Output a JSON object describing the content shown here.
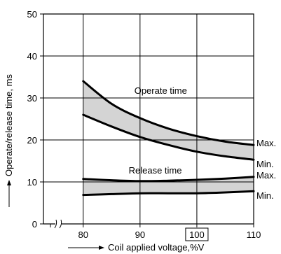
{
  "chart_data": {
    "type": "area",
    "xlabel": "Coil applied voltage,%V",
    "ylabel": "Operate/release time, ms",
    "xlim": [
      73,
      110
    ],
    "ylim": [
      0,
      50
    ],
    "x_ticks": [
      "80",
      "90",
      "100",
      "110"
    ],
    "x_tick_values": [
      80,
      90,
      100,
      110
    ],
    "boxed_tick": "100",
    "y_ticks": [
      "0",
      "10",
      "20",
      "30",
      "40",
      "50"
    ],
    "y_tick_values": [
      0,
      10,
      20,
      30,
      40,
      50
    ],
    "axis_break": true,
    "grid": true,
    "bands": [
      {
        "label": "Operate time",
        "label_at": [
          89,
          31
        ],
        "band_color": "#d4d4d4",
        "max": {
          "label": "Max.",
          "x": [
            80,
            85,
            90,
            95,
            100,
            105,
            110
          ],
          "y": [
            34,
            28.6,
            25.2,
            22.7,
            20.9,
            19.6,
            18.8
          ]
        },
        "min": {
          "label": "Min.",
          "x": [
            80,
            85,
            90,
            95,
            100,
            105,
            110
          ],
          "y": [
            26,
            23.2,
            20.7,
            18.8,
            17.2,
            16.1,
            15.3
          ]
        }
      },
      {
        "label": "Release time",
        "label_at": [
          88,
          12
        ],
        "band_color": "#d4d4d4",
        "max": {
          "label": "Max.",
          "x": [
            80,
            85,
            90,
            95,
            100,
            105,
            110
          ],
          "y": [
            10.7,
            10.4,
            10.2,
            10.3,
            10.5,
            10.8,
            11.2
          ]
        },
        "min": {
          "label": "Min.",
          "x": [
            80,
            85,
            90,
            95,
            100,
            105,
            110
          ],
          "y": [
            6.9,
            7.1,
            7.3,
            7.3,
            7.3,
            7.5,
            7.8
          ]
        }
      }
    ]
  }
}
